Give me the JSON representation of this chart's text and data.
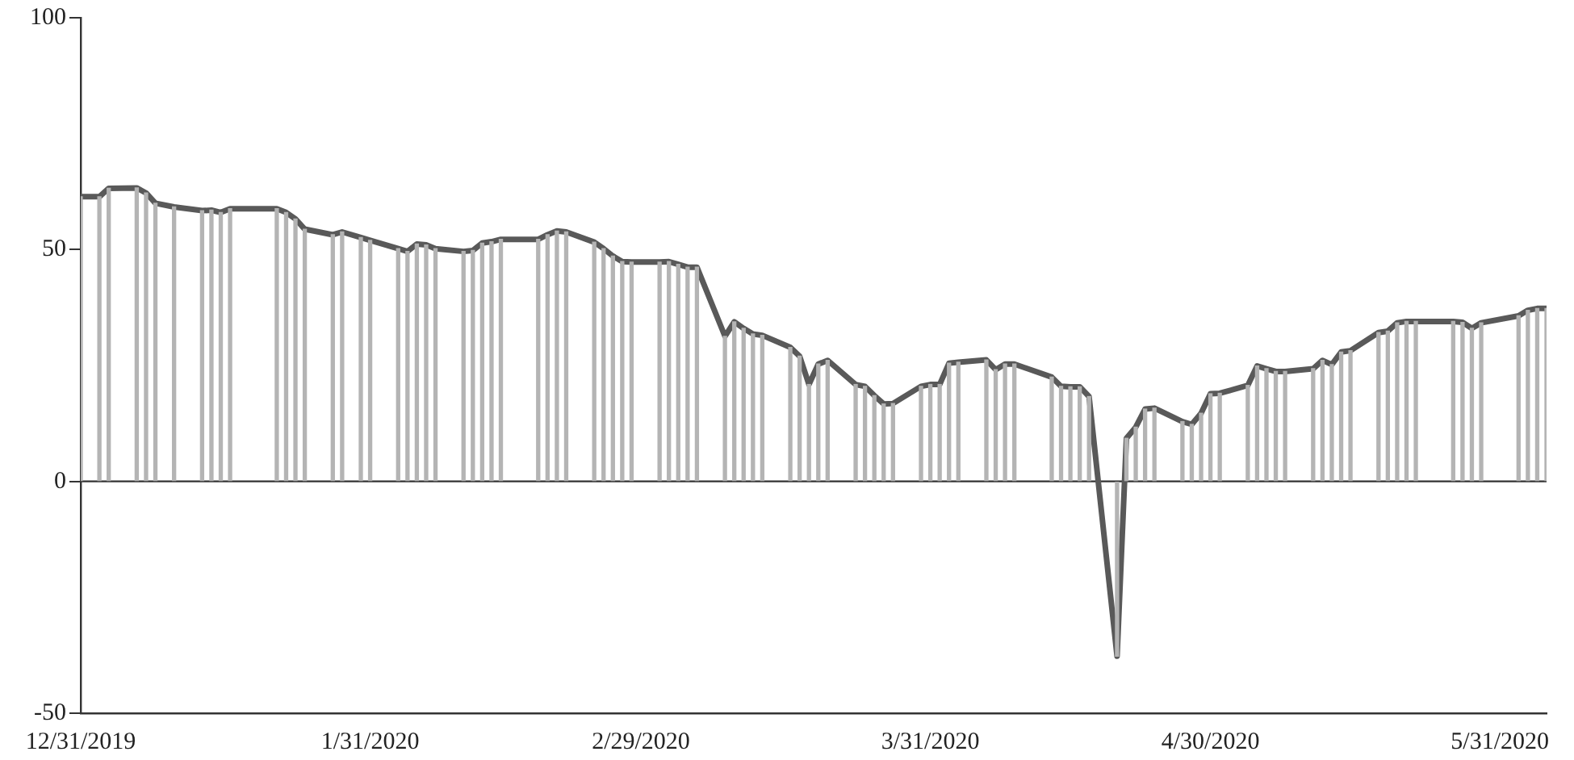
{
  "chart_data": {
    "type": "bar",
    "x": [
      "2019-12-31",
      "2020-01-02",
      "2020-01-03",
      "2020-01-06",
      "2020-01-07",
      "2020-01-08",
      "2020-01-10",
      "2020-01-13",
      "2020-01-14",
      "2020-01-15",
      "2020-01-16",
      "2020-01-21",
      "2020-01-22",
      "2020-01-23",
      "2020-01-24",
      "2020-01-27",
      "2020-01-28",
      "2020-01-30",
      "2020-01-31",
      "2020-02-03",
      "2020-02-04",
      "2020-02-05",
      "2020-02-06",
      "2020-02-07",
      "2020-02-10",
      "2020-02-11",
      "2020-02-12",
      "2020-02-13",
      "2020-02-14",
      "2020-02-18",
      "2020-02-19",
      "2020-02-20",
      "2020-02-21",
      "2020-02-24",
      "2020-02-25",
      "2020-02-26",
      "2020-02-27",
      "2020-02-28",
      "2020-03-02",
      "2020-03-03",
      "2020-03-04",
      "2020-03-05",
      "2020-03-06",
      "2020-03-09",
      "2020-03-10",
      "2020-03-11",
      "2020-03-12",
      "2020-03-13",
      "2020-03-16",
      "2020-03-17",
      "2020-03-18",
      "2020-03-19",
      "2020-03-20",
      "2020-03-23",
      "2020-03-24",
      "2020-03-25",
      "2020-03-26",
      "2020-03-27",
      "2020-03-30",
      "2020-03-31",
      "2020-04-01",
      "2020-04-02",
      "2020-04-03",
      "2020-04-06",
      "2020-04-07",
      "2020-04-08",
      "2020-04-09",
      "2020-04-13",
      "2020-04-14",
      "2020-04-15",
      "2020-04-16",
      "2020-04-17",
      "2020-04-20",
      "2020-04-21",
      "2020-04-22",
      "2020-04-23",
      "2020-04-24",
      "2020-04-27",
      "2020-04-28",
      "2020-04-29",
      "2020-04-30",
      "2020-05-01",
      "2020-05-04",
      "2020-05-05",
      "2020-05-06",
      "2020-05-07",
      "2020-05-08",
      "2020-05-11",
      "2020-05-12",
      "2020-05-13",
      "2020-05-14",
      "2020-05-15",
      "2020-05-18",
      "2020-05-19",
      "2020-05-20",
      "2020-05-21",
      "2020-05-22",
      "2020-05-26",
      "2020-05-27",
      "2020-05-28",
      "2020-05-29",
      "2020-06-02",
      "2020-06-03",
      "2020-06-04",
      "2020-06-05"
    ],
    "series": [
      {
        "color": "#b4b4b4",
        "values": [
          61.4,
          61.4,
          63.2,
          63.3,
          62.2,
          60.0,
          59.2,
          58.4,
          58.5,
          58.0,
          58.8,
          58.8,
          58.0,
          56.6,
          54.4,
          53.2,
          53.8,
          52.6,
          52.0,
          50.2,
          49.6,
          51.2,
          51.0,
          50.2,
          49.6,
          49.8,
          51.4,
          51.7,
          52.2,
          52.2,
          53.2,
          54.0,
          53.8,
          51.6,
          50.2,
          48.6,
          47.4,
          47.3,
          47.3,
          47.4,
          46.8,
          46.2,
          46.2,
          31.3,
          34.4,
          33.0,
          31.8,
          31.5,
          28.9,
          27.0,
          20.9,
          25.3,
          26.1,
          20.9,
          20.5,
          18.5,
          16.7,
          16.8,
          20.5,
          20.9,
          20.9,
          25.5,
          25.7,
          26.2,
          24.1,
          25.3,
          25.3,
          22.5,
          20.5,
          20.4,
          20.4,
          18.3,
          -37.7,
          9.3,
          11.7,
          15.6,
          15.8,
          12.9,
          12.3,
          14.7,
          18.9,
          19.0,
          20.7,
          24.9,
          24.3,
          23.7,
          23.7,
          24.3,
          26.1,
          25.2,
          27.9,
          28.2,
          32.1,
          32.4,
          34.2,
          34.5,
          34.5,
          34.5,
          34.3,
          33.0,
          34.2,
          35.7,
          36.9,
          37.3,
          37.3
        ]
      },
      {
        "type": "line",
        "color": "#595959",
        "values": [
          61.4,
          61.4,
          63.2,
          63.3,
          62.2,
          60.0,
          59.2,
          58.4,
          58.5,
          58.0,
          58.8,
          58.8,
          58.0,
          56.6,
          54.4,
          53.2,
          53.8,
          52.6,
          52.0,
          50.2,
          49.6,
          51.2,
          51.0,
          50.2,
          49.6,
          49.8,
          51.4,
          51.7,
          52.2,
          52.2,
          53.2,
          54.0,
          53.8,
          51.6,
          50.2,
          48.6,
          47.4,
          47.3,
          47.3,
          47.4,
          46.8,
          46.2,
          46.2,
          31.3,
          34.4,
          33.0,
          31.8,
          31.5,
          28.9,
          27.0,
          20.9,
          25.3,
          26.1,
          20.9,
          20.5,
          18.5,
          16.7,
          16.8,
          20.5,
          20.9,
          20.9,
          25.5,
          25.7,
          26.2,
          24.1,
          25.3,
          25.3,
          22.5,
          20.5,
          20.4,
          20.4,
          18.3,
          -37.7,
          9.3,
          11.7,
          15.6,
          15.8,
          12.9,
          12.3,
          14.7,
          18.9,
          19.0,
          20.7,
          24.9,
          24.3,
          23.7,
          23.7,
          24.3,
          26.1,
          25.2,
          27.9,
          28.2,
          32.1,
          32.4,
          34.2,
          34.5,
          34.5,
          34.5,
          34.3,
          33.0,
          34.2,
          35.7,
          36.9,
          37.3,
          37.3
        ]
      }
    ],
    "xlim": [
      "2019-12-31",
      "2020-06-05"
    ],
    "xticks": [
      {
        "value": "2019-12-31",
        "label": "12/31/2019"
      },
      {
        "value": "2020-01-31",
        "label": "1/31/2020"
      },
      {
        "value": "2020-02-29",
        "label": "2/29/2020"
      },
      {
        "value": "2020-03-31",
        "label": "3/31/2020"
      },
      {
        "value": "2020-04-30",
        "label": "4/30/2020"
      },
      {
        "value": "2020-05-31",
        "label": "5/31/2020"
      }
    ],
    "ylim": [
      -50,
      100
    ],
    "yticks": [
      -50,
      0,
      50,
      100
    ],
    "ref_lines": [
      {
        "axis": "y",
        "value": 0,
        "color": "#333333"
      }
    ],
    "grid": false,
    "legend": false,
    "marker": "none",
    "line_style": "solid"
  }
}
